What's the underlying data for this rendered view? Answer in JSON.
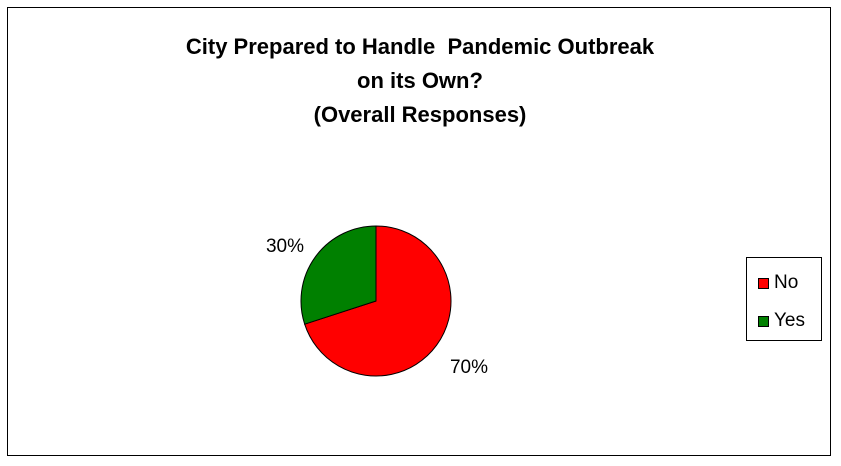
{
  "chart_data": {
    "type": "pie",
    "title_lines": [
      "City Prepared to Handle  Pandemic Outbreak",
      "on its Own?",
      "(Overall Responses)"
    ],
    "slices": [
      {
        "label": "No",
        "value": 70,
        "display": "70%",
        "color": "#ff0000"
      },
      {
        "label": "Yes",
        "value": 30,
        "display": "30%",
        "color": "#008000"
      }
    ],
    "legend": {
      "position": "right",
      "entries": [
        "No",
        "Yes"
      ]
    }
  }
}
